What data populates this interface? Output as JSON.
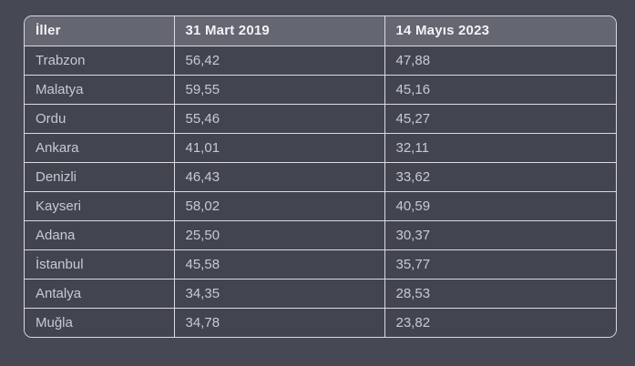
{
  "chart_data": {
    "type": "table",
    "columns": [
      "İller",
      "31 Mart 2019",
      "14 Mayıs 2023"
    ],
    "rows": [
      [
        "Trabzon",
        "56,42",
        "47,88"
      ],
      [
        "Malatya",
        "59,55",
        "45,16"
      ],
      [
        "Ordu",
        "55,46",
        "45,27"
      ],
      [
        "Ankara",
        "41,01",
        "32,11"
      ],
      [
        "Denizli",
        "46,43",
        "33,62"
      ],
      [
        "Kayseri",
        "58,02",
        "40,59"
      ],
      [
        "Adana",
        "25,50",
        "30,37"
      ],
      [
        "İstanbul",
        "45,58",
        "35,77"
      ],
      [
        "Antalya",
        "34,35",
        "28,53"
      ],
      [
        "Muğla",
        "34,78",
        "23,82"
      ]
    ]
  },
  "colors": {
    "page_background": "#464853",
    "row_background": "#424450",
    "header_background": "#646672",
    "border": "#d9dae2",
    "header_text": "#f2f3f5",
    "cell_text": "#c8cad2"
  }
}
